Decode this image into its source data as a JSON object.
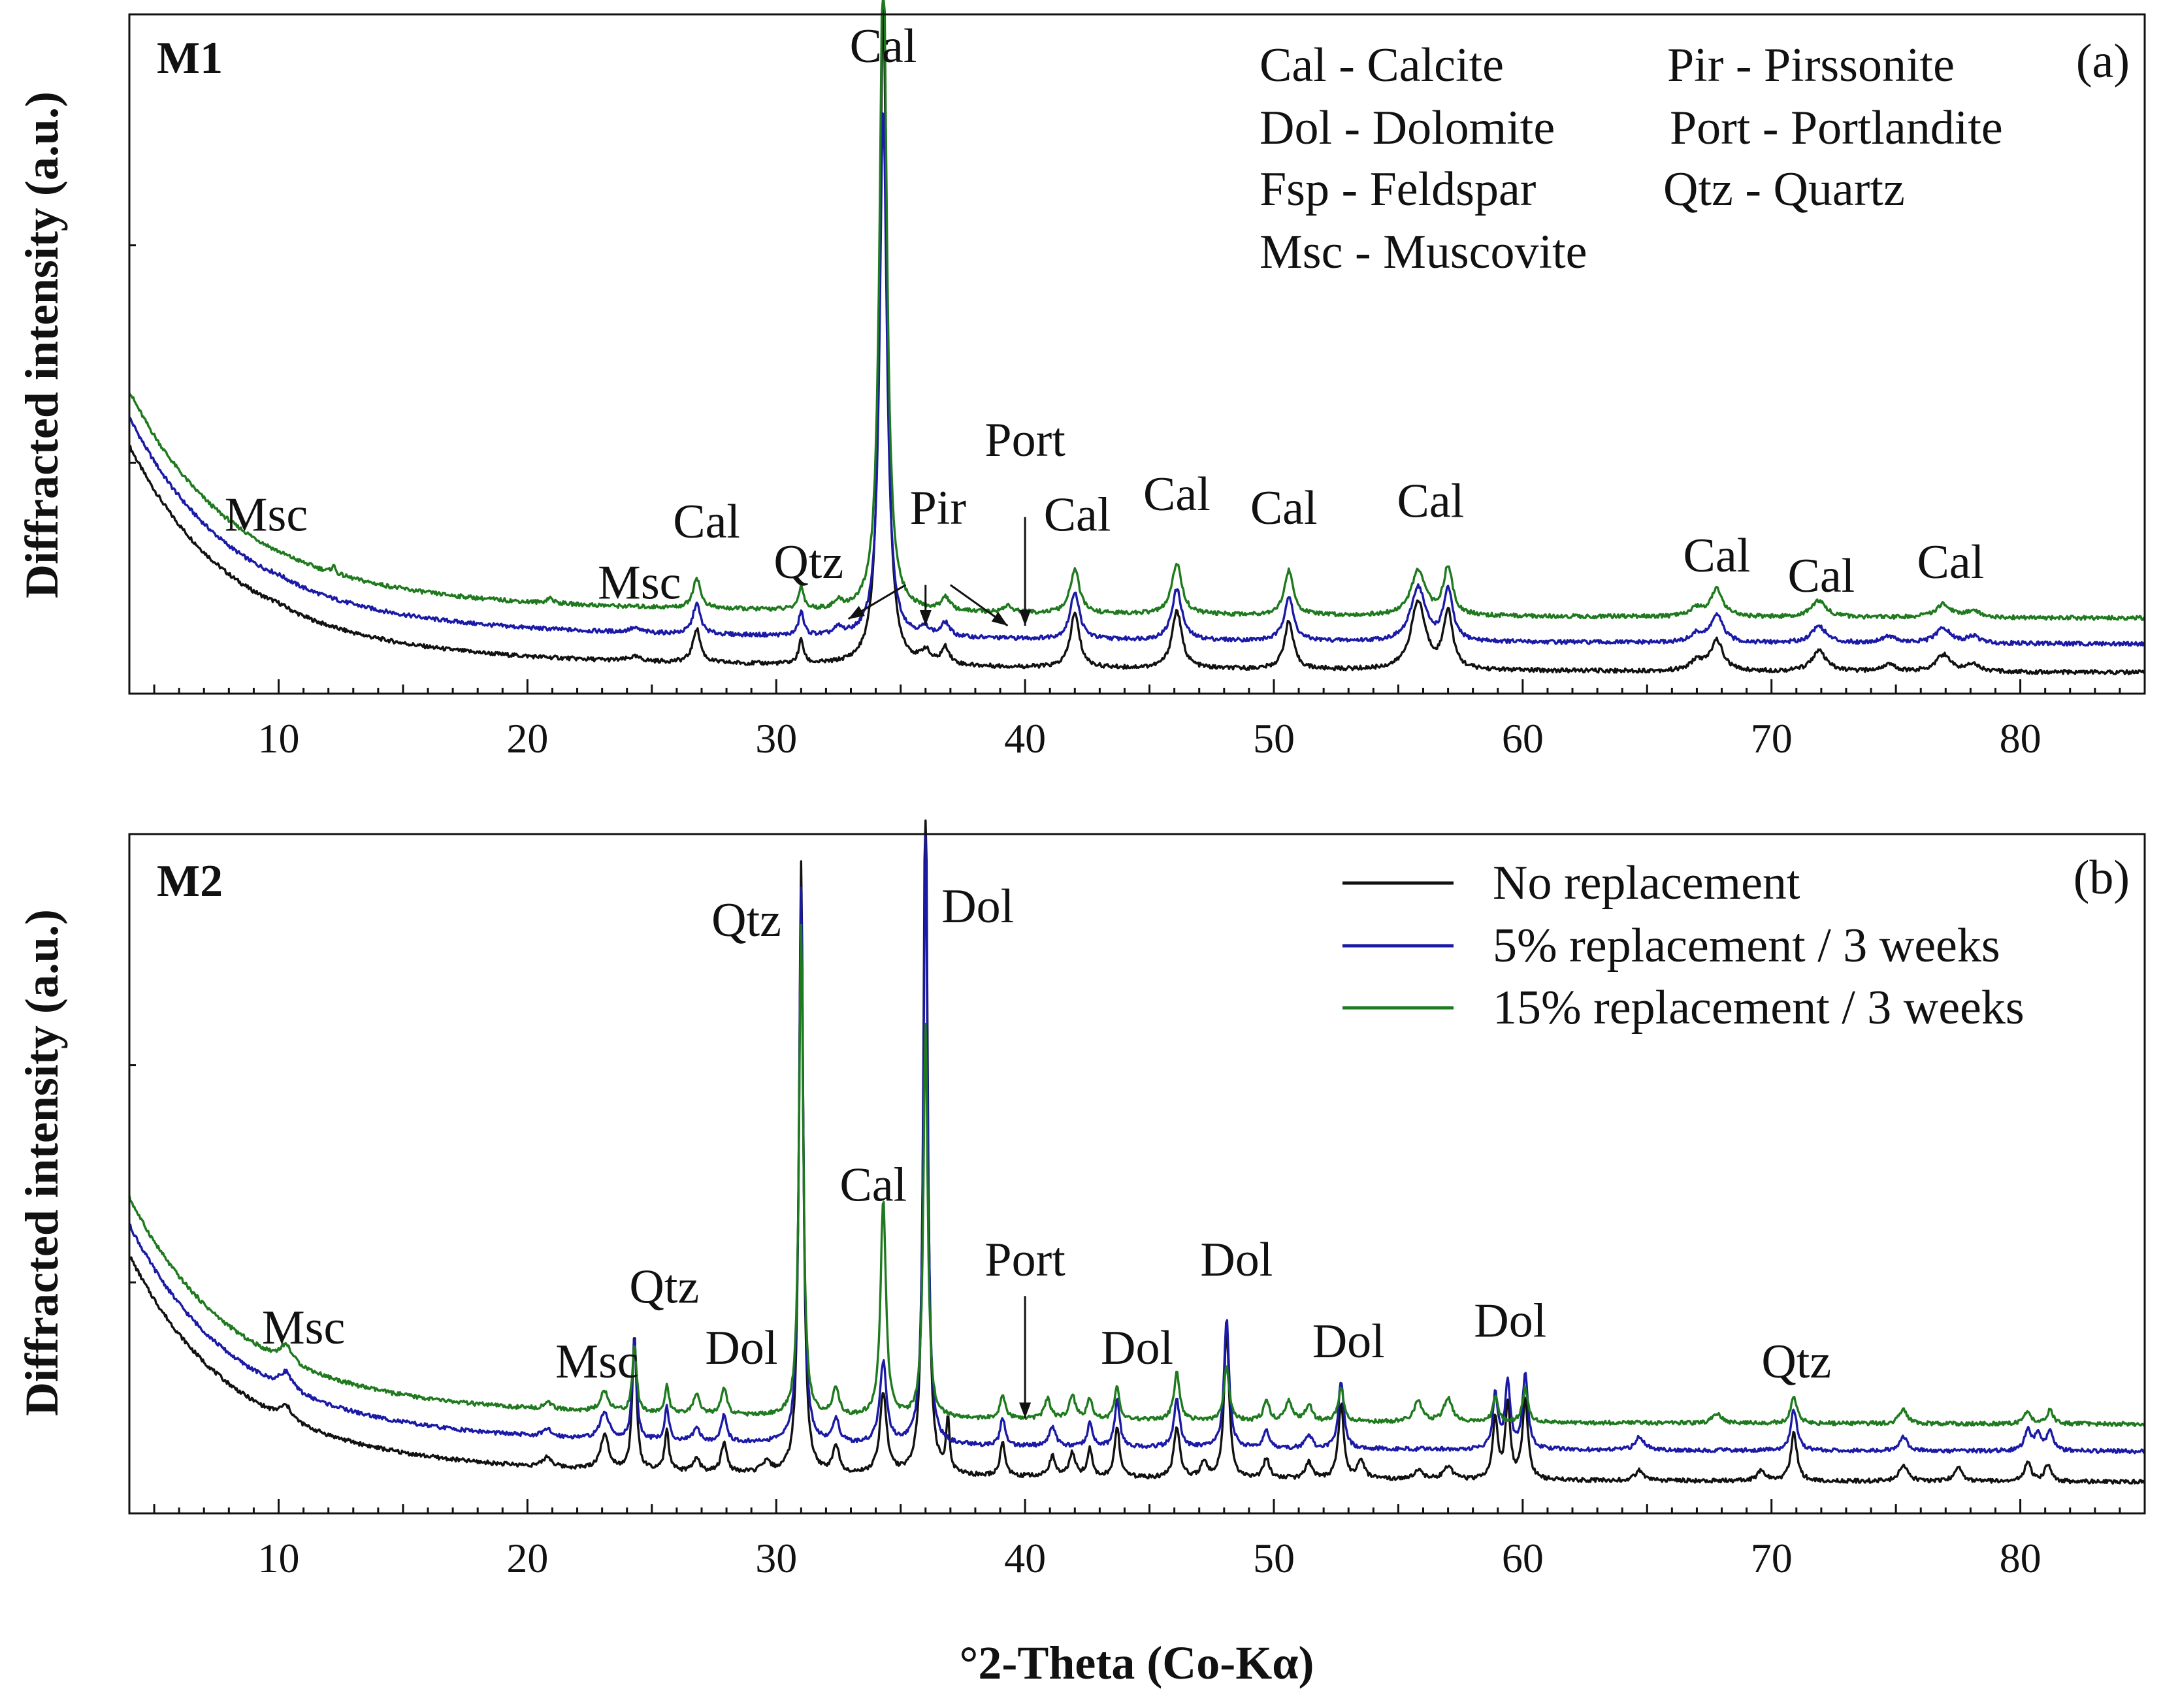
{
  "chart_data": [
    {
      "type": "line",
      "panel_label": "M1",
      "panel_letter": "(a)",
      "xlabel": "°2-Theta (Co-Kα)",
      "ylabel": "Diffracted intensity (a.u.)",
      "xlim": [
        4,
        85
      ],
      "ylim": [
        0,
        1
      ],
      "xticks": [
        10,
        20,
        30,
        40,
        50,
        60,
        70,
        80
      ],
      "phase_key": [
        "Cal - Calcite",
        "Dol - Dolomite",
        "Fsp - Feldspar",
        "Msc - Muscovite",
        "Pir - Pirssonite",
        "Port - Portlandite",
        "Qtz - Quartz"
      ],
      "series": [
        {
          "name": "No replacement",
          "color": "#111111",
          "offset": 0.0,
          "peaks": [
            [
              10,
              0.004,
              0.6
            ],
            [
              24.3,
              0.006,
              0.3
            ],
            [
              26.8,
              0.05,
              0.18
            ],
            [
              31.0,
              0.035,
              0.12
            ],
            [
              34.3,
              0.98,
              0.17
            ],
            [
              36.0,
              0.018,
              0.2
            ],
            [
              36.8,
              0.025,
              0.2
            ],
            [
              42.0,
              0.08,
              0.22
            ],
            [
              46.1,
              0.085,
              0.24
            ],
            [
              50.6,
              0.07,
              0.22
            ],
            [
              55.8,
              0.1,
              0.35
            ],
            [
              57.0,
              0.085,
              0.22
            ],
            [
              67.0,
              0.015,
              0.3
            ],
            [
              67.8,
              0.045,
              0.3
            ],
            [
              71.9,
              0.03,
              0.35
            ],
            [
              74.7,
              0.01,
              0.35
            ],
            [
              76.9,
              0.025,
              0.35
            ],
            [
              78.1,
              0.012,
              0.3
            ]
          ]
        },
        {
          "name": "5% replacement / 3 weeks",
          "color": "#1a1aa6",
          "offset": 0.042,
          "peaks": [
            [
              10,
              0.004,
              0.6
            ],
            [
              24.3,
              0.006,
              0.3
            ],
            [
              26.8,
              0.045,
              0.18
            ],
            [
              31.0,
              0.035,
              0.12
            ],
            [
              32.5,
              0.01,
              0.2
            ],
            [
              34.3,
              0.78,
              0.17
            ],
            [
              36.0,
              0.012,
              0.2
            ],
            [
              36.8,
              0.02,
              0.2
            ],
            [
              42.0,
              0.07,
              0.22
            ],
            [
              46.1,
              0.075,
              0.24
            ],
            [
              50.6,
              0.065,
              0.22
            ],
            [
              55.8,
              0.08,
              0.35
            ],
            [
              57.0,
              0.075,
              0.22
            ],
            [
              67.0,
              0.012,
              0.3
            ],
            [
              67.8,
              0.04,
              0.3
            ],
            [
              71.9,
              0.025,
              0.35
            ],
            [
              74.7,
              0.01,
              0.35
            ],
            [
              76.9,
              0.022,
              0.35
            ],
            [
              78.1,
              0.01,
              0.3
            ]
          ]
        },
        {
          "name": "15% replacement / 3 weeks",
          "color": "#1f7a1f",
          "offset": 0.08,
          "peaks": [
            [
              12.2,
              0.012,
              0.08
            ],
            [
              20.9,
              0.008,
              0.15
            ],
            [
              26.8,
              0.045,
              0.18
            ],
            [
              31.0,
              0.035,
              0.12
            ],
            [
              32.5,
              0.01,
              0.2
            ],
            [
              34.3,
              0.99,
              0.17
            ],
            [
              36.8,
              0.02,
              0.2
            ],
            [
              39.3,
              0.01,
              0.2
            ],
            [
              42.0,
              0.065,
              0.22
            ],
            [
              46.1,
              0.075,
              0.24
            ],
            [
              50.6,
              0.065,
              0.22
            ],
            [
              55.8,
              0.065,
              0.35
            ],
            [
              57.0,
              0.07,
              0.22
            ],
            [
              67.0,
              0.012,
              0.3
            ],
            [
              67.8,
              0.04,
              0.3
            ],
            [
              71.9,
              0.025,
              0.35
            ],
            [
              76.9,
              0.02,
              0.35
            ],
            [
              78.1,
              0.01,
              0.3
            ]
          ]
        }
      ],
      "annotations": [
        {
          "text": "Msc",
          "x": 9.5,
          "y": 0.24
        },
        {
          "text": "Msc",
          "x": 24.5,
          "y": 0.14
        },
        {
          "text": "Cal",
          "x": 27.2,
          "y": 0.23
        },
        {
          "text": "Qtz",
          "x": 31.3,
          "y": 0.17
        },
        {
          "text": "Cal",
          "x": 34.3,
          "y": 0.93
        },
        {
          "text": "Pir",
          "x": 36.5,
          "y": 0.25
        },
        {
          "text": "Port",
          "x": 40.0,
          "y": 0.35
        },
        {
          "text": "Cal",
          "x": 42.1,
          "y": 0.24
        },
        {
          "text": "Cal",
          "x": 46.1,
          "y": 0.27
        },
        {
          "text": "Cal",
          "x": 50.4,
          "y": 0.25
        },
        {
          "text": "Cal",
          "x": 56.3,
          "y": 0.26
        },
        {
          "text": "Cal",
          "x": 67.8,
          "y": 0.18
        },
        {
          "text": "Cal",
          "x": 72.0,
          "y": 0.15
        },
        {
          "text": "Cal",
          "x": 77.2,
          "y": 0.17
        }
      ],
      "arrows": [
        {
          "from": [
            35.2,
            0.16
          ],
          "to": [
            32.9,
            0.11
          ]
        },
        {
          "from": [
            36.0,
            0.16
          ],
          "to": [
            36.0,
            0.1
          ]
        },
        {
          "from": [
            37.0,
            0.16
          ],
          "to": [
            39.3,
            0.1
          ]
        },
        {
          "from": [
            40.0,
            0.26
          ],
          "to": [
            40.0,
            0.1
          ]
        }
      ]
    },
    {
      "type": "line",
      "panel_label": "M2",
      "panel_letter": "(b)",
      "xlabel": "°2-Theta (Co-Kα)",
      "ylabel": "Diffracted intensity (a.u.)",
      "xlim": [
        4,
        85
      ],
      "ylim": [
        0,
        1
      ],
      "xticks": [
        10,
        20,
        30,
        40,
        50,
        60,
        70,
        80
      ],
      "series": [
        {
          "name": "No replacement",
          "color": "#111111",
          "offset": 0.0,
          "peaks": [
            [
              10.3,
              0.02,
              0.3
            ],
            [
              20.8,
              0.015,
              0.2
            ],
            [
              23.1,
              0.05,
              0.2
            ],
            [
              24.3,
              0.2,
              0.1
            ],
            [
              25.6,
              0.06,
              0.1
            ],
            [
              26.8,
              0.02,
              0.15
            ],
            [
              27.9,
              0.045,
              0.13
            ],
            [
              29.6,
              0.015,
              0.2
            ],
            [
              31.0,
              0.9,
              0.1
            ],
            [
              32.4,
              0.04,
              0.15
            ],
            [
              34.3,
              0.12,
              0.16
            ],
            [
              36.0,
              1.05,
              0.1
            ],
            [
              36.9,
              0.08,
              0.08
            ],
            [
              39.1,
              0.05,
              0.12
            ],
            [
              41.1,
              0.03,
              0.15
            ],
            [
              41.9,
              0.035,
              0.15
            ],
            [
              42.6,
              0.04,
              0.12
            ],
            [
              43.7,
              0.075,
              0.12
            ],
            [
              46.1,
              0.075,
              0.14
            ],
            [
              47.2,
              0.025,
              0.14
            ],
            [
              48.1,
              0.22,
              0.12
            ],
            [
              49.7,
              0.03,
              0.14
            ],
            [
              51.4,
              0.025,
              0.15
            ],
            [
              52.7,
              0.11,
              0.13
            ],
            [
              53.5,
              0.03,
              0.15
            ],
            [
              55.8,
              0.015,
              0.2
            ],
            [
              57.0,
              0.02,
              0.2
            ],
            [
              58.9,
              0.09,
              0.12
            ],
            [
              59.4,
              0.11,
              0.12
            ],
            [
              60.1,
              0.12,
              0.13
            ],
            [
              64.7,
              0.015,
              0.2
            ],
            [
              69.6,
              0.015,
              0.2
            ],
            [
              70.9,
              0.07,
              0.15
            ],
            [
              75.3,
              0.025,
              0.2
            ],
            [
              77.5,
              0.02,
              0.2
            ],
            [
              80.3,
              0.03,
              0.15
            ],
            [
              81.1,
              0.025,
              0.15
            ]
          ]
        },
        {
          "name": "5% replacement / 3 weeks",
          "color": "#1a1aa6",
          "offset": 0.045,
          "peaks": [
            [
              10.3,
              0.025,
              0.3
            ],
            [
              20.8,
              0.01,
              0.2
            ],
            [
              23.1,
              0.04,
              0.2
            ],
            [
              24.3,
              0.15,
              0.1
            ],
            [
              25.6,
              0.05,
              0.1
            ],
            [
              26.8,
              0.02,
              0.15
            ],
            [
              27.9,
              0.04,
              0.13
            ],
            [
              31.0,
              0.82,
              0.1
            ],
            [
              32.4,
              0.035,
              0.15
            ],
            [
              34.3,
              0.12,
              0.16
            ],
            [
              36.0,
              0.9,
              0.1
            ],
            [
              39.1,
              0.04,
              0.12
            ],
            [
              41.1,
              0.03,
              0.15
            ],
            [
              42.6,
              0.035,
              0.12
            ],
            [
              43.7,
              0.07,
              0.12
            ],
            [
              46.1,
              0.07,
              0.14
            ],
            [
              48.1,
              0.19,
              0.12
            ],
            [
              49.7,
              0.025,
              0.14
            ],
            [
              51.4,
              0.02,
              0.15
            ],
            [
              52.7,
              0.1,
              0.13
            ],
            [
              58.9,
              0.08,
              0.12
            ],
            [
              59.4,
              0.1,
              0.12
            ],
            [
              60.1,
              0.11,
              0.13
            ],
            [
              64.7,
              0.02,
              0.2
            ],
            [
              70.9,
              0.06,
              0.15
            ],
            [
              75.3,
              0.02,
              0.2
            ],
            [
              80.3,
              0.03,
              0.15
            ],
            [
              80.7,
              0.025,
              0.15
            ],
            [
              81.2,
              0.03,
              0.15
            ]
          ]
        },
        {
          "name": "15% replacement / 3 weeks",
          "color": "#1f7a1f",
          "offset": 0.085,
          "peaks": [
            [
              10.3,
              0.025,
              0.3
            ],
            [
              20.8,
              0.01,
              0.2
            ],
            [
              23.1,
              0.03,
              0.2
            ],
            [
              24.3,
              0.1,
              0.1
            ],
            [
              25.6,
              0.04,
              0.1
            ],
            [
              26.8,
              0.03,
              0.15
            ],
            [
              27.9,
              0.04,
              0.13
            ],
            [
              31.0,
              0.72,
              0.1
            ],
            [
              32.4,
              0.04,
              0.15
            ],
            [
              34.3,
              0.32,
              0.13
            ],
            [
              36.0,
              0.58,
              0.1
            ],
            [
              39.1,
              0.035,
              0.12
            ],
            [
              40.9,
              0.03,
              0.15
            ],
            [
              41.9,
              0.035,
              0.15
            ],
            [
              42.6,
              0.03,
              0.12
            ],
            [
              43.7,
              0.05,
              0.12
            ],
            [
              46.1,
              0.07,
              0.14
            ],
            [
              48.1,
              0.08,
              0.12
            ],
            [
              49.7,
              0.03,
              0.14
            ],
            [
              50.6,
              0.03,
              0.15
            ],
            [
              51.4,
              0.025,
              0.15
            ],
            [
              52.7,
              0.05,
              0.13
            ],
            [
              55.8,
              0.03,
              0.2
            ],
            [
              57.0,
              0.035,
              0.2
            ],
            [
              58.9,
              0.04,
              0.12
            ],
            [
              60.1,
              0.05,
              0.13
            ],
            [
              67.8,
              0.015,
              0.2
            ],
            [
              70.9,
              0.04,
              0.15
            ],
            [
              75.3,
              0.02,
              0.2
            ],
            [
              80.3,
              0.02,
              0.15
            ],
            [
              81.2,
              0.02,
              0.15
            ]
          ]
        }
      ],
      "annotations": [
        {
          "text": "Msc",
          "x": 11.0,
          "y": 0.25
        },
        {
          "text": "Msc",
          "x": 22.8,
          "y": 0.2
        },
        {
          "text": "Qtz",
          "x": 25.5,
          "y": 0.31
        },
        {
          "text": "Dol",
          "x": 28.6,
          "y": 0.22
        },
        {
          "text": "Qtz",
          "x": 28.8,
          "y": 0.85
        },
        {
          "text": "Cal",
          "x": 33.9,
          "y": 0.46
        },
        {
          "text": "Dol",
          "x": 38.1,
          "y": 0.87
        },
        {
          "text": "Port",
          "x": 40.0,
          "y": 0.35
        },
        {
          "text": "Dol",
          "x": 44.5,
          "y": 0.22
        },
        {
          "text": "Dol",
          "x": 48.5,
          "y": 0.35
        },
        {
          "text": "Dol",
          "x": 53.0,
          "y": 0.23
        },
        {
          "text": "Dol",
          "x": 59.5,
          "y": 0.26
        },
        {
          "text": "Qtz",
          "x": 71.0,
          "y": 0.2
        }
      ],
      "arrows": [
        {
          "from": [
            40.0,
            0.32
          ],
          "to": [
            40.0,
            0.14
          ]
        }
      ],
      "legend": {
        "position": "top-right",
        "entries": [
          {
            "label": "No replacement",
            "color": "#111111"
          },
          {
            "label": "5% replacement / 3 weeks",
            "color": "#1a1aa6"
          },
          {
            "label": "15% replacement / 3 weeks",
            "color": "#1f7a1f"
          }
        ]
      }
    }
  ]
}
